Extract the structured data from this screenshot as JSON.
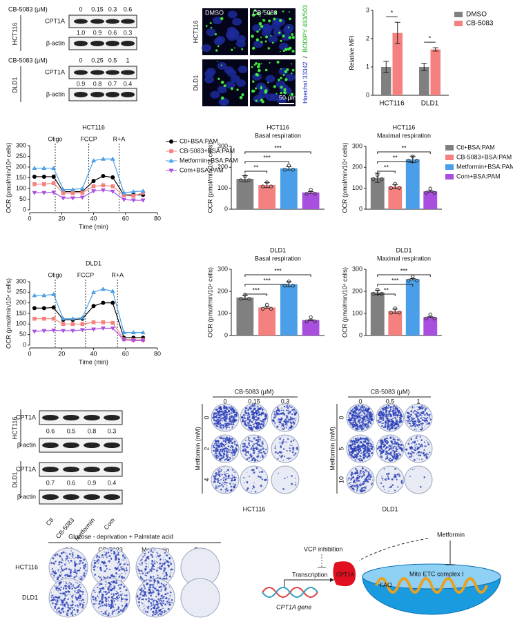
{
  "blots_top": [
    {
      "cell": "HCT116",
      "treatment": "CB-5083 (μM)",
      "doses": [
        "0",
        "0.15",
        "0.3",
        "0.6"
      ],
      "protein": "CPT1A",
      "loading": "β-actin",
      "ratios": [
        "1.0",
        "0.9",
        "0.6",
        "0.3"
      ]
    },
    {
      "cell": "DLD1",
      "treatment": "CB-5083 (μM)",
      "doses": [
        "0",
        "0.25",
        "0.5",
        "1"
      ],
      "protein": "CPT1A",
      "loading": "β-actin",
      "ratios": [
        "0.9",
        "0.8",
        "0.7",
        "0.4"
      ]
    }
  ],
  "microscopy": {
    "conditions": [
      "DMSO",
      "CB-5083"
    ],
    "cells": [
      "HCT116",
      "DLD1"
    ],
    "stain_blue": "Hoechst 33342",
    "stain_sep": "/",
    "stain_green": "BODIPY 493/503",
    "scale_bar": "50 μm"
  },
  "chart_data": [
    {
      "type": "bar",
      "ylabel": "Relative MFI",
      "categories": [
        "HCT116",
        "DLD1"
      ],
      "series": [
        {
          "name": "DMSO",
          "color": "#808080",
          "values": [
            1.0,
            1.0
          ],
          "errors": [
            0.2,
            0.13
          ]
        },
        {
          "name": "CB-5083",
          "color": "#f4817f",
          "values": [
            2.2,
            1.62
          ],
          "errors": [
            0.38,
            0.06
          ]
        }
      ],
      "ylim": [
        0,
        3
      ],
      "yticks": [
        0,
        1,
        2,
        3
      ],
      "significance": [
        "*",
        "*"
      ],
      "legend": "upper right"
    },
    {
      "type": "line",
      "title": "HCT116",
      "xlabel": "Time (min)",
      "ylabel": "OCR (pmol/min/10⁴ cells)",
      "x": [
        3,
        9,
        15,
        21,
        27,
        33,
        40,
        46,
        52,
        59,
        65,
        71
      ],
      "series": [
        {
          "name": "Ctl+BSA:PAM",
          "color": "#000000",
          "marker": "circle",
          "values": [
            155,
            155,
            155,
            85,
            85,
            85,
            135,
            158,
            152,
            70,
            70,
            70
          ]
        },
        {
          "name": "CB-5083+BSA:PAM",
          "color": "#f4817f",
          "marker": "square",
          "values": [
            120,
            120,
            125,
            78,
            78,
            80,
            110,
            115,
            110,
            68,
            65,
            80
          ]
        },
        {
          "name": "Metformin+BSA:PAM",
          "color": "#4a9fe8",
          "marker": "triangle-up",
          "values": [
            195,
            195,
            195,
            95,
            95,
            100,
            230,
            238,
            238,
            80,
            85,
            88
          ]
        },
        {
          "name": "Com+BSA:PAM",
          "color": "#a84fe0",
          "marker": "triangle-down",
          "values": [
            80,
            80,
            82,
            55,
            55,
            58,
            88,
            92,
            86,
            48,
            45,
            45
          ]
        }
      ],
      "xlim": [
        0,
        80
      ],
      "xticks": [
        0,
        20,
        40,
        60,
        80
      ],
      "ylim": [
        0,
        300
      ],
      "yticks": [
        0,
        50,
        100,
        150,
        200,
        250,
        300
      ],
      "injections": [
        {
          "label": "Oligo",
          "x": 16
        },
        {
          "label": "FCCP",
          "x": 37
        },
        {
          "label": "R+A",
          "x": 56
        }
      ],
      "legend": "right"
    },
    {
      "type": "line",
      "title": "DLD1",
      "xlabel": "Time (min)",
      "ylabel": "OCR (pmol/min/10⁴ cells)",
      "x": [
        3,
        9,
        15,
        21,
        27,
        33,
        40,
        46,
        52,
        59,
        65,
        71
      ],
      "series": [
        {
          "name": "Ctl+BSA:PAM",
          "color": "#000000",
          "marker": "circle",
          "values": [
            175,
            175,
            178,
            120,
            120,
            125,
            185,
            200,
            200,
            35,
            35,
            35
          ]
        },
        {
          "name": "CB-5083+BSA:PAM",
          "color": "#f4817f",
          "marker": "square",
          "values": [
            125,
            125,
            125,
            100,
            100,
            100,
            108,
            108,
            105,
            28,
            25,
            25
          ]
        },
        {
          "name": "Metformin+BSA:PAM",
          "color": "#4a9fe8",
          "marker": "triangle-up",
          "values": [
            235,
            235,
            240,
            125,
            125,
            130,
            250,
            265,
            255,
            60,
            60,
            60
          ]
        },
        {
          "name": "Com+BSA:PAM",
          "color": "#a84fe0",
          "marker": "triangle-down",
          "values": [
            65,
            68,
            70,
            68,
            68,
            72,
            75,
            80,
            80,
            25,
            22,
            22
          ]
        }
      ],
      "xlim": [
        0,
        80
      ],
      "xticks": [
        0,
        20,
        40,
        60,
        80
      ],
      "ylim": [
        0,
        300
      ],
      "yticks": [
        0,
        50,
        100,
        150,
        200,
        250,
        300
      ],
      "injections": [
        {
          "label": "Oligo",
          "x": 16
        },
        {
          "label": "FCCP",
          "x": 35
        },
        {
          "label": "R+A",
          "x": 55
        }
      ]
    },
    {
      "type": "bar",
      "title": "HCT116",
      "subtitle": "Basal respiration",
      "ylabel": "OCR (pmol/min/10⁴ cells)",
      "categories": [
        null,
        null,
        null,
        null
      ],
      "values": [
        145,
        115,
        195,
        80
      ],
      "errors": [
        15,
        12,
        8,
        4
      ],
      "colors": [
        "#808080",
        "#f4817f",
        "#4a9fe8",
        "#a84fe0"
      ],
      "ylim": [
        0,
        300
      ],
      "yticks": [
        0,
        100,
        200,
        300
      ],
      "comparisons": [
        "**",
        "***",
        "***"
      ]
    },
    {
      "type": "bar",
      "title": "HCT116",
      "subtitle": "Maximal respiration",
      "ylabel": "OCR (pmol/min/10⁴ cells)",
      "categories": [
        null,
        null,
        null,
        null
      ],
      "values": [
        150,
        108,
        238,
        85
      ],
      "errors": [
        22,
        10,
        15,
        3
      ],
      "colors": [
        "#808080",
        "#f4817f",
        "#4a9fe8",
        "#a84fe0"
      ],
      "ylim": [
        0,
        300
      ],
      "yticks": [
        0,
        100,
        200,
        300
      ],
      "comparisons": [
        "**",
        "**",
        "**"
      ],
      "legend": "right",
      "legend_labels": [
        "Ctl+BSA:PAM",
        "CB-5083+BSA:PAM",
        "Metformin+BSA:PAM",
        "Com+BSA:PAM"
      ]
    },
    {
      "type": "bar",
      "title": "DLD1",
      "subtitle": "Basal respiration",
      "ylabel": "OCR (pmol/min/10⁴ cells)",
      "categories": [
        null,
        null,
        null,
        null
      ],
      "values": [
        172,
        127,
        232,
        70
      ],
      "errors": [
        8,
        3,
        12,
        2
      ],
      "colors": [
        "#808080",
        "#f4817f",
        "#4a9fe8",
        "#a84fe0"
      ],
      "ylim": [
        0,
        300
      ],
      "yticks": [
        0,
        100,
        200,
        300
      ],
      "comparisons": [
        "***",
        "***",
        "***"
      ]
    },
    {
      "type": "bar",
      "title": "DLD1",
      "subtitle": "Maximal respiration",
      "ylabel": "OCR (pmol/min/10⁴ cells)",
      "categories": [
        null,
        null,
        null,
        null
      ],
      "values": [
        195,
        110,
        255,
        83
      ],
      "errors": [
        10,
        10,
        3,
        2
      ],
      "colors": [
        "#808080",
        "#f4817f",
        "#4a9fe8",
        "#a84fe0"
      ],
      "ylim": [
        0,
        300
      ],
      "yticks": [
        0,
        100,
        200,
        300
      ],
      "comparisons": [
        "**",
        "***",
        "***"
      ]
    }
  ],
  "blots_bottom": {
    "lanes": [
      "Ctl",
      "CB-5083",
      "Metformin",
      "Com"
    ],
    "rows": [
      {
        "cell": "HCT116",
        "protein": "CPT1A",
        "loading": "β-actin",
        "ratios": [
          "0.6",
          "0.5",
          "0.8",
          "0.3"
        ]
      },
      {
        "cell": "DLD1",
        "protein": "CPT1A",
        "loading": "β-actin",
        "ratios": [
          "0.7",
          "0.6",
          "0.9",
          "0.4"
        ]
      }
    ]
  },
  "colony": [
    {
      "cell": "HCT116",
      "treatment": "CB-5083 (μM)",
      "doses": [
        "0",
        "0.15",
        "0.3"
      ],
      "row_label": "Metformin (mM)",
      "row_doses": [
        "0",
        "2",
        "4"
      ]
    },
    {
      "cell": "DLD1",
      "treatment": "CB-5083 (μM)",
      "doses": [
        "0",
        "0.5",
        "1"
      ],
      "row_label": "Metformin (mM)",
      "row_doses": [
        "0",
        "5",
        "10"
      ]
    }
  ],
  "glucose": {
    "title": "Glucose - deprivation + Palmitate acid",
    "columns": [
      "Ctl",
      "CB-5083",
      "Metformin",
      "Com"
    ],
    "rows": [
      "HCT116",
      "DLD1"
    ]
  },
  "diagram": {
    "metformin": "Metformin",
    "vcp": "VCP inhibition",
    "transcription": "Transcription",
    "cpt1a": "CPT1A",
    "mito": "Mito ETC complex I",
    "fao": "FAO",
    "gene": "CPT1A gene"
  }
}
